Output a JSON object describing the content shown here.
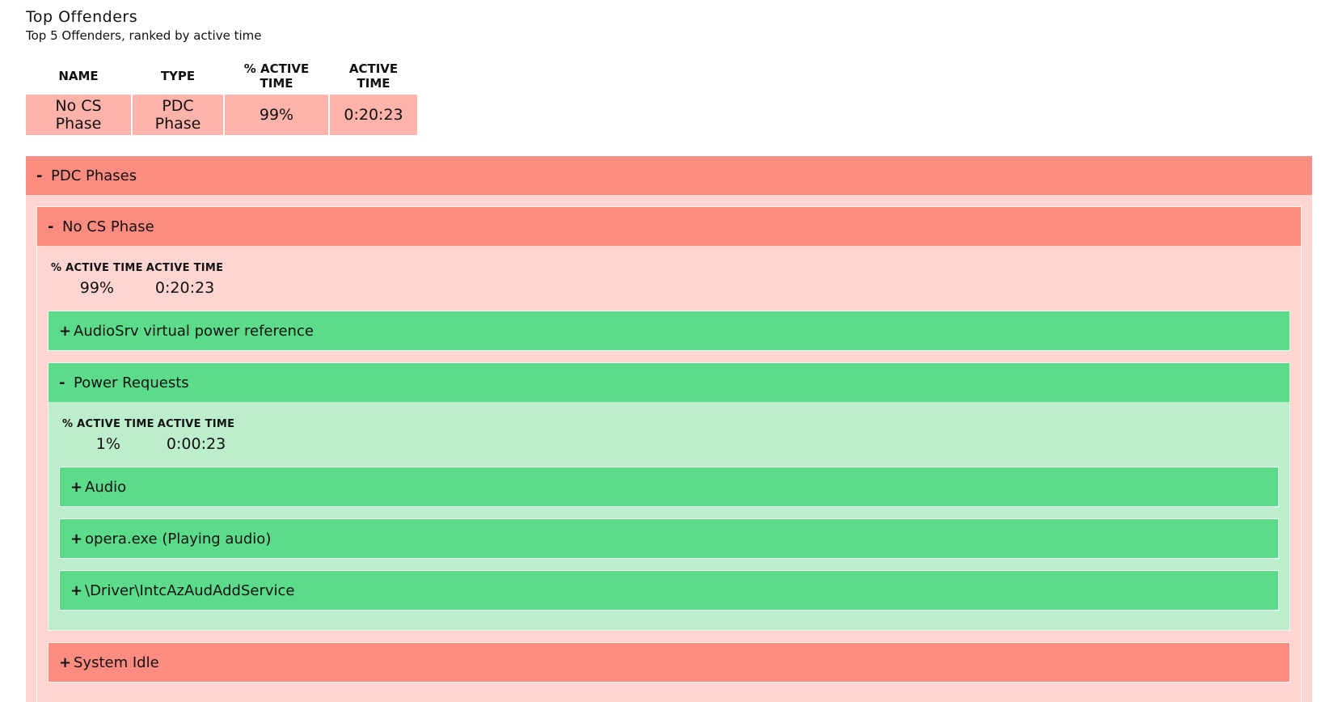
{
  "header": {
    "title": "Top Offenders",
    "subtitle": "Top 5 Offenders, ranked by active time"
  },
  "table": {
    "columns": [
      "NAME",
      "TYPE",
      "% ACTIVE TIME",
      "ACTIVE TIME"
    ],
    "rows": [
      [
        "No CS Phase",
        "PDC Phase",
        "99%",
        "0:20:23"
      ]
    ]
  },
  "tree": {
    "toggle": "-",
    "label": "PDC Phases",
    "state": "bad",
    "children": [
      {
        "toggle": "-",
        "label": "No CS Phase",
        "state": "bad",
        "stats": {
          "columns": [
            "% ACTIVE TIME",
            "ACTIVE TIME"
          ],
          "values": [
            "99%",
            "0:20:23"
          ]
        },
        "children": [
          {
            "toggle": "+",
            "label": "AudioSrv virtual power reference",
            "state": "good"
          },
          {
            "toggle": "-",
            "label": "Power Requests",
            "state": "good",
            "stats": {
              "columns": [
                "% ACTIVE TIME",
                "ACTIVE TIME"
              ],
              "values": [
                "1%",
                "0:00:23"
              ]
            },
            "children": [
              {
                "toggle": "+",
                "label": "Audio",
                "state": "good"
              },
              {
                "toggle": "+",
                "label": "opera.exe (Playing audio)",
                "state": "good"
              },
              {
                "toggle": "+",
                "label": "\\Driver\\IntcAzAudAddService",
                "state": "good"
              }
            ]
          },
          {
            "toggle": "+",
            "label": "System Idle",
            "state": "bad"
          }
        ]
      }
    ]
  }
}
